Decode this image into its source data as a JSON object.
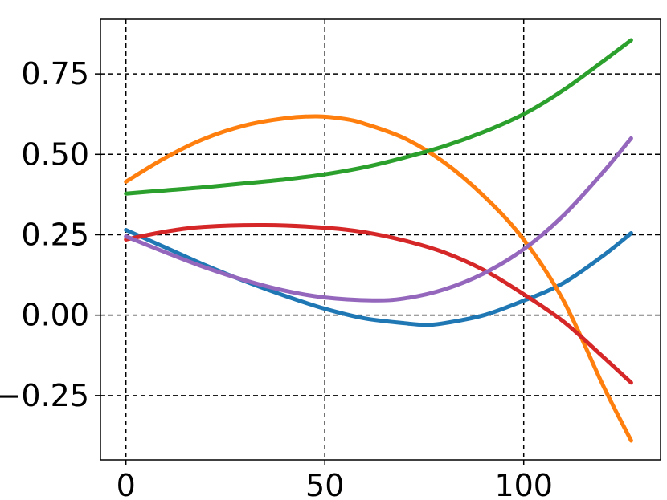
{
  "chart_data": {
    "type": "line",
    "title": "",
    "xlabel": "",
    "ylabel": "",
    "xlim": [
      -6.4,
      134.4
    ],
    "ylim": [
      -0.45,
      0.92
    ],
    "grid": true,
    "xticks": [
      0,
      50,
      100
    ],
    "xtick_labels": [
      "0",
      "50",
      "100"
    ],
    "yticks": [
      -0.25,
      0.0,
      0.25,
      0.5,
      0.75
    ],
    "ytick_labels": [
      "−0.25",
      "0.00",
      "0.25",
      "0.50",
      "0.75"
    ],
    "series": [
      {
        "color": "#1f77b4",
        "x": [
          0,
          10,
          20,
          30,
          40,
          50,
          60,
          70,
          75,
          80,
          90,
          100,
          110,
          120,
          127
        ],
        "y": [
          0.265,
          0.21,
          0.155,
          0.105,
          0.06,
          0.02,
          -0.01,
          -0.025,
          -0.03,
          -0.025,
          0.0,
          0.045,
          0.1,
          0.185,
          0.255
        ]
      },
      {
        "color": "#ff7f0e",
        "x": [
          0,
          10,
          20,
          30,
          40,
          48,
          55,
          60,
          70,
          80,
          90,
          100,
          110,
          120,
          127
        ],
        "y": [
          0.415,
          0.49,
          0.55,
          0.59,
          0.612,
          0.618,
          0.61,
          0.595,
          0.55,
          0.475,
          0.37,
          0.235,
          0.045,
          -0.22,
          -0.39
        ]
      },
      {
        "color": "#2ca02c",
        "x": [
          0,
          10,
          20,
          30,
          40,
          50,
          60,
          70,
          80,
          90,
          100,
          110,
          120,
          127
        ],
        "y": [
          0.378,
          0.388,
          0.398,
          0.41,
          0.422,
          0.438,
          0.46,
          0.49,
          0.525,
          0.57,
          0.625,
          0.7,
          0.79,
          0.855
        ]
      },
      {
        "color": "#d62728",
        "x": [
          0,
          10,
          20,
          35,
          50,
          60,
          70,
          80,
          90,
          100,
          110,
          120,
          127
        ],
        "y": [
          0.235,
          0.26,
          0.275,
          0.28,
          0.272,
          0.258,
          0.232,
          0.195,
          0.14,
          0.065,
          -0.02,
          -0.13,
          -0.21
        ]
      },
      {
        "color": "#9467bd",
        "x": [
          0,
          10,
          20,
          30,
          40,
          50,
          62,
          70,
          80,
          90,
          100,
          110,
          120,
          127
        ],
        "y": [
          0.245,
          0.195,
          0.148,
          0.108,
          0.076,
          0.055,
          0.046,
          0.052,
          0.08,
          0.13,
          0.205,
          0.31,
          0.445,
          0.55
        ]
      }
    ]
  }
}
